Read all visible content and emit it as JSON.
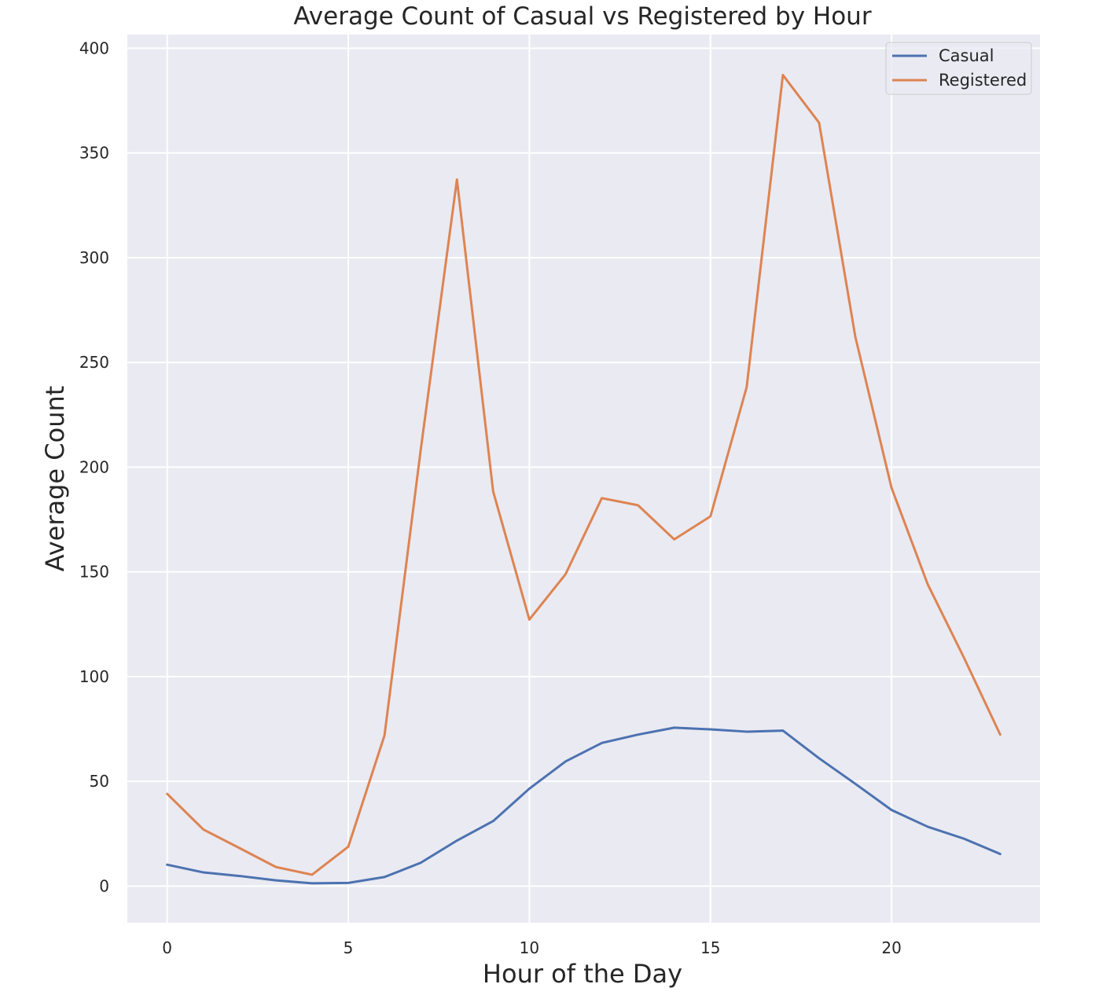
{
  "chart_data": {
    "type": "line",
    "title": "Average Count of Casual vs Registered by Hour",
    "xlabel": "Hour of the Day",
    "ylabel": "Average Count",
    "x": [
      0,
      1,
      2,
      3,
      4,
      5,
      6,
      7,
      8,
      9,
      10,
      11,
      12,
      13,
      14,
      15,
      16,
      17,
      18,
      19,
      20,
      21,
      22,
      23
    ],
    "series": [
      {
        "name": "Casual",
        "color": "#4c72b0",
        "values": [
          10.2,
          6.5,
          4.8,
          2.7,
          1.3,
          1.5,
          4.3,
          11.1,
          21.7,
          31.0,
          46.5,
          59.5,
          68.3,
          72.3,
          75.6,
          74.8,
          73.7,
          74.2,
          61.0,
          48.8,
          36.3,
          28.3,
          22.6,
          15.3
        ]
      },
      {
        "name": "Registered",
        "color": "#dd8452",
        "values": [
          44.0,
          27.0,
          18.1,
          9.1,
          5.4,
          18.8,
          71.9,
          208.2,
          337.3,
          188.4,
          127.2,
          148.9,
          185.2,
          181.8,
          165.5,
          176.5,
          238.2,
          387.2,
          364.4,
          262.2,
          190.1,
          144.0,
          109.0,
          72.3
        ]
      }
    ],
    "xlim": [
      -1.1,
      24.1
    ],
    "ylim": [
      -17.5,
      406.5
    ],
    "xticks": [
      0,
      5,
      10,
      15,
      20
    ],
    "yticks": [
      0,
      50,
      100,
      150,
      200,
      250,
      300,
      350,
      400
    ],
    "grid": true,
    "legend_position": "top-right",
    "background_color": "#eaeaf2",
    "grid_color": "#ffffff"
  }
}
